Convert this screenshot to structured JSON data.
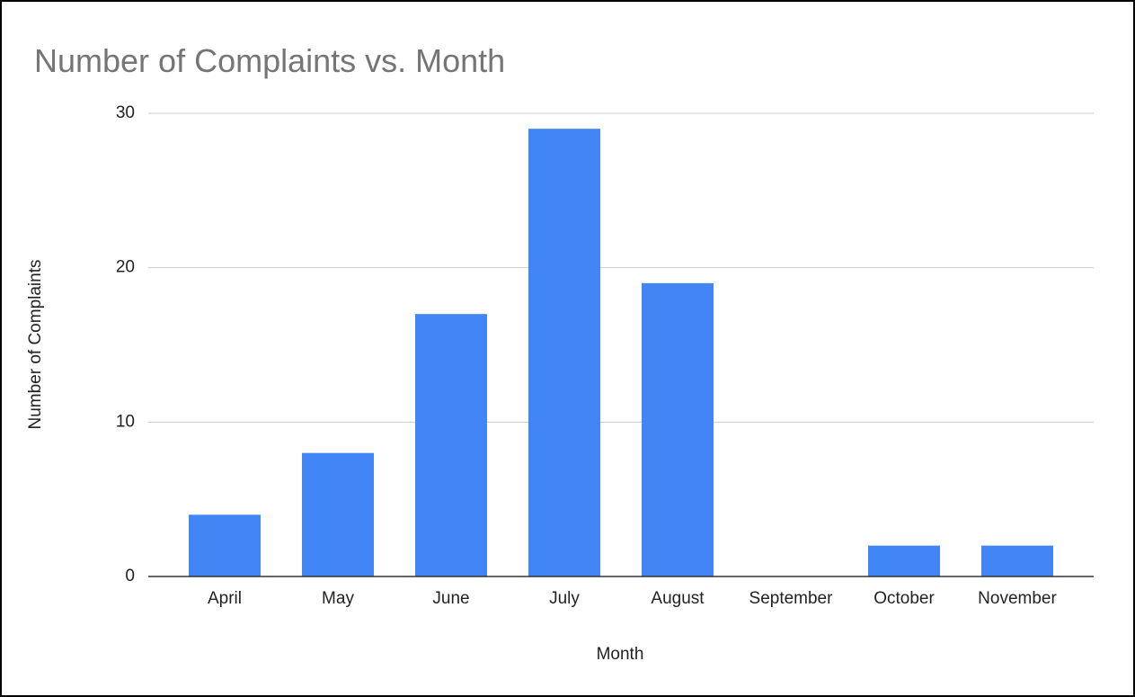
{
  "chart_data": {
    "type": "bar",
    "title": "Number of Complaints  vs. Month",
    "x_label": "Month",
    "y_label": "Number of Complaints",
    "categories": [
      "April",
      "May",
      "June",
      "July",
      "August",
      "September",
      "October",
      "November"
    ],
    "values": [
      4,
      8,
      17,
      29,
      19,
      0,
      2,
      2
    ],
    "color": "#4285f4",
    "ylim": [
      0,
      30
    ],
    "yticks": [
      0,
      10,
      20,
      30
    ],
    "grid": true
  }
}
